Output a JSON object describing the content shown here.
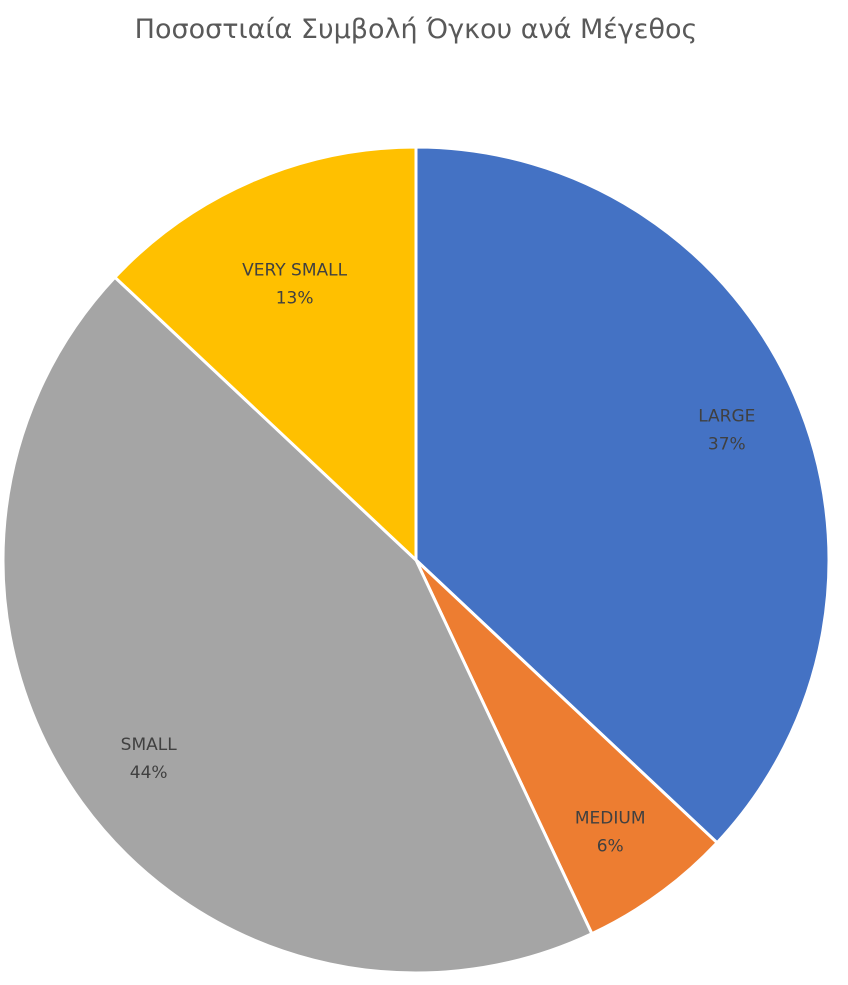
{
  "chart_data": {
    "type": "pie",
    "title": "Ποσοστιαία Συμβολή Όγκου ανά Μέγεθος",
    "slices": [
      {
        "label": "LARGE",
        "value": 37,
        "value_label": "37%",
        "color": "#4472C4"
      },
      {
        "label": "MEDIUM",
        "value": 6,
        "value_label": "6%",
        "color": "#ED7D31"
      },
      {
        "label": "SMALL",
        "value": 44,
        "value_label": "44%",
        "color": "#A5A5A5"
      },
      {
        "label": "VERY SMALL",
        "value": 13,
        "value_label": "13%",
        "color": "#FFC000"
      }
    ],
    "start_angle_deg": 0,
    "direction": "clockwise",
    "legend": "none",
    "slice_border_color": "#FFFFFF"
  }
}
